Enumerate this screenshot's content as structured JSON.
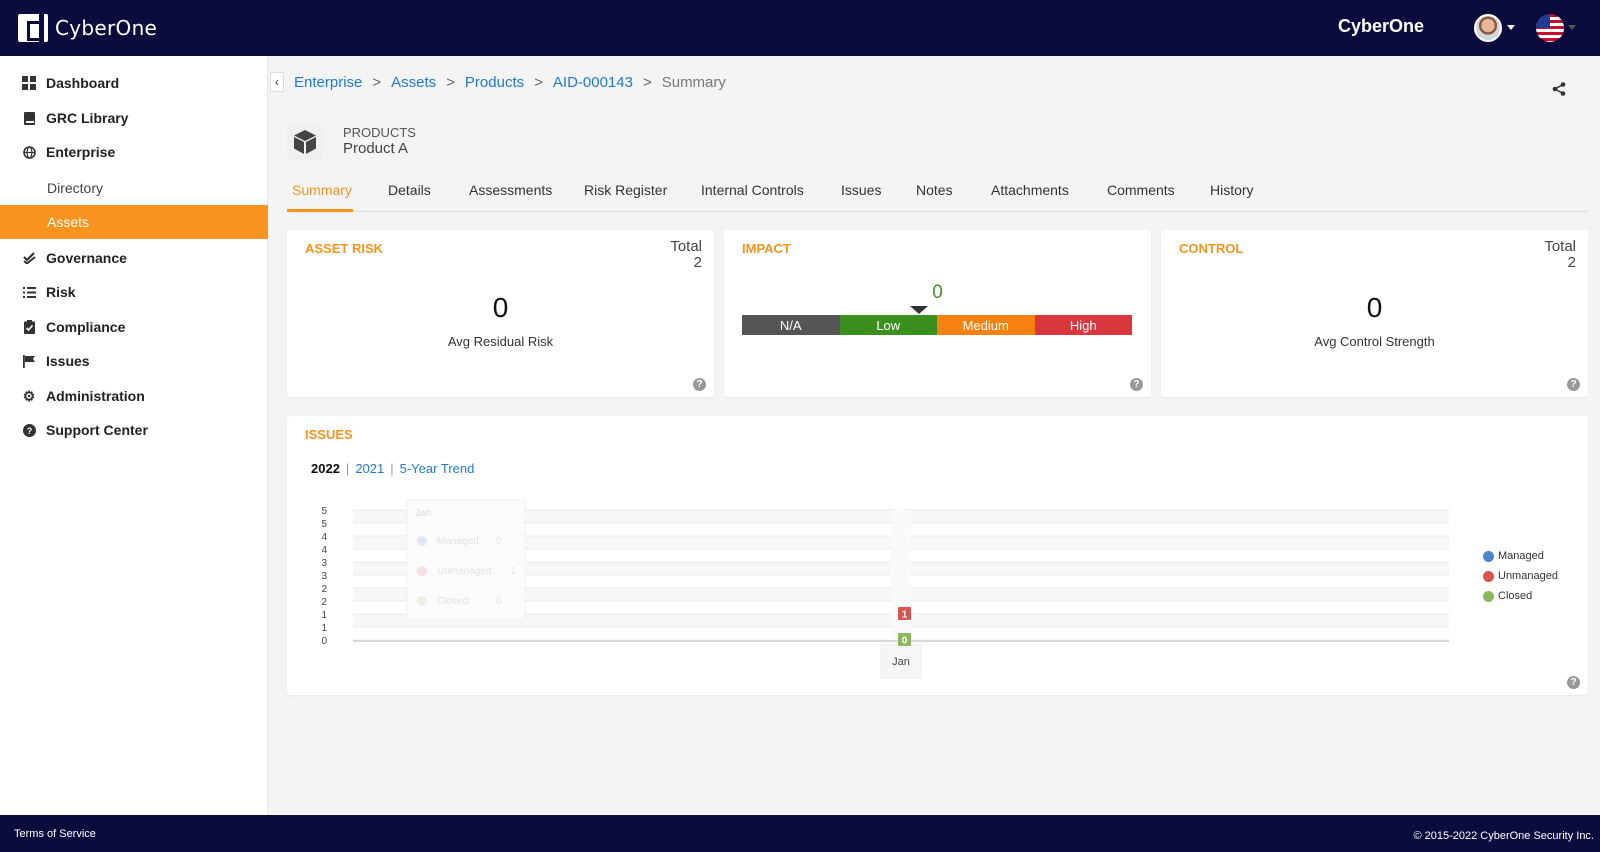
{
  "header": {
    "brand": "CyberOne",
    "user_name": "CyberOne",
    "avatar_icon": "user-avatar",
    "language_icon": "us-flag-icon"
  },
  "sidebar": {
    "items": [
      {
        "label": "Dashboard",
        "icon": "dashboard-grid-icon"
      },
      {
        "label": "GRC Library",
        "icon": "book-icon"
      },
      {
        "label": "Enterprise",
        "icon": "globe-icon"
      },
      {
        "label": "Directory",
        "sub": true
      },
      {
        "label": "Assets",
        "sub": true,
        "active": true
      },
      {
        "label": "Governance",
        "icon": "double-check-icon"
      },
      {
        "label": "Risk",
        "icon": "list-icon"
      },
      {
        "label": "Compliance",
        "icon": "clipboard-check-icon"
      },
      {
        "label": "Issues",
        "icon": "flag-icon"
      },
      {
        "label": "Administration",
        "icon": "gear-icon"
      },
      {
        "label": "Support Center",
        "icon": "question-circle-icon"
      }
    ]
  },
  "breadcrumb": {
    "items": [
      "Enterprise",
      "Assets",
      "Products",
      "AID-000143"
    ],
    "current": "Summary",
    "separator": ">"
  },
  "product": {
    "type": "PRODUCTS",
    "name": "Product A"
  },
  "tabs": [
    "Summary",
    "Details",
    "Assessments",
    "Risk Register",
    "Internal Controls",
    "Issues",
    "Notes",
    "Attachments",
    "Comments",
    "History"
  ],
  "active_tab": "Summary",
  "asset_risk": {
    "title": "ASSET RISK",
    "total_label": "Total",
    "total_value": "2",
    "value": "0",
    "label": "Avg Residual Risk"
  },
  "impact": {
    "title": "IMPACT",
    "value": "0",
    "levels": [
      {
        "label": "N/A",
        "color": "#555555"
      },
      {
        "label": "Low",
        "color": "#3a8f1f"
      },
      {
        "label": "Medium",
        "color": "#f7820f"
      },
      {
        "label": "High",
        "color": "#d9363e"
      }
    ]
  },
  "control": {
    "title": "CONTROL",
    "total_label": "Total",
    "total_value": "2",
    "value": "0",
    "label": "Avg Control Strength"
  },
  "issues": {
    "title": "ISSUES",
    "periods": [
      "2022",
      "2021",
      "5-Year Trend"
    ],
    "active_period": "2022"
  },
  "chart_data": {
    "type": "bar",
    "categories": [
      "Jan"
    ],
    "series": [
      {
        "name": "Managed",
        "values": [
          0
        ],
        "color": "#4a86c8"
      },
      {
        "name": "Unmanaged",
        "values": [
          1
        ],
        "color": "#d9534f"
      },
      {
        "name": "Closed",
        "values": [
          0
        ],
        "color": "#8cb85c"
      }
    ],
    "ytick_labels": [
      "5",
      "5",
      "4",
      "4",
      "3",
      "3",
      "2",
      "2",
      "1",
      "1",
      "0"
    ],
    "ylim": [
      0,
      5
    ],
    "tooltip": {
      "title": "Jan",
      "rows": [
        {
          "label": "Managed:",
          "value": "0"
        },
        {
          "label": "Unmanaged:",
          "value": "1"
        },
        {
          "label": "Closed:",
          "value": "0"
        }
      ]
    },
    "legend_position": "right",
    "grid": true
  },
  "footer": {
    "left": "Terms of Service",
    "right": "© 2015-2022 CyberOne Security Inc."
  }
}
